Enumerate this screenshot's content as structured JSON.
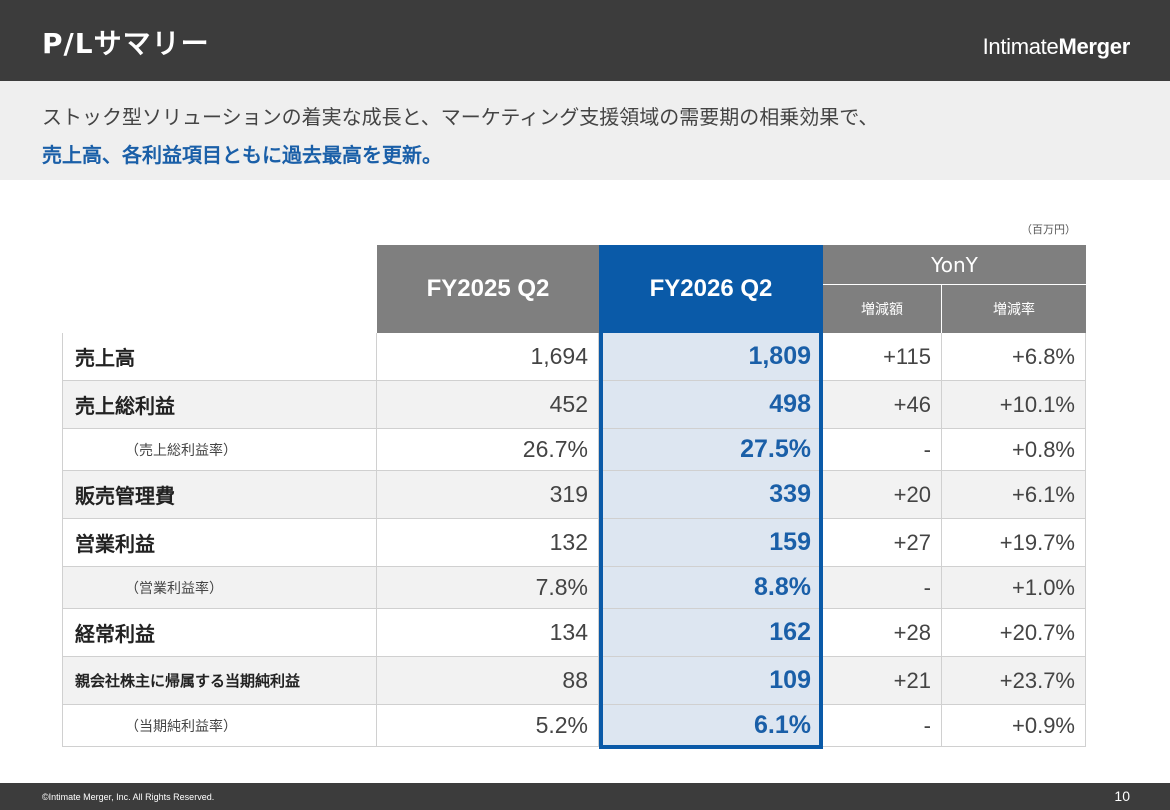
{
  "header": {
    "title": "P/Lサマリー",
    "logo_regular": "Intimate",
    "logo_bold": "Merger"
  },
  "subtitle": {
    "line1": "ストック型ソリューションの着実な成長と、マーケティング支援領域の需要期の相乗効果で、",
    "line2": "売上高、各利益項目ともに過去最高を更新。"
  },
  "unit_note": "（百万円）",
  "table": {
    "col_fy25": "FY2025 Q2",
    "col_fy26": "FY2026 Q2",
    "col_yony": "YonY",
    "col_diff": "増減額",
    "col_rate": "増減率",
    "rows": [
      {
        "label": "売上高",
        "fy25": "1,694",
        "fy26": "1,809",
        "diff": "+115",
        "rate": "+6.8%"
      },
      {
        "label": "売上総利益",
        "fy25": "452",
        "fy26": "498",
        "diff": "+46",
        "rate": "+10.1%"
      },
      {
        "label": "（売上総利益率）",
        "fy25": "26.7%",
        "fy26": "27.5%",
        "diff": "-",
        "rate": "+0.8%"
      },
      {
        "label": "販売管理費",
        "fy25": "319",
        "fy26": "339",
        "diff": "+20",
        "rate": "+6.1%"
      },
      {
        "label": "営業利益",
        "fy25": "132",
        "fy26": "159",
        "diff": "+27",
        "rate": "+19.7%"
      },
      {
        "label": "（営業利益率）",
        "fy25": "7.8%",
        "fy26": "8.8%",
        "diff": "-",
        "rate": "+1.0%"
      },
      {
        "label": "経常利益",
        "fy25": "134",
        "fy26": "162",
        "diff": "+28",
        "rate": "+20.7%"
      },
      {
        "label": "親会社株主に帰属する当期純利益",
        "fy25": "88",
        "fy26": "109",
        "diff": "+21",
        "rate": "+23.7%"
      },
      {
        "label": "（当期純利益率）",
        "fy25": "5.2%",
        "fy26": "6.1%",
        "diff": "-",
        "rate": "+0.9%"
      }
    ]
  },
  "footer": {
    "copyright": "©Intimate Merger, Inc. All Rights Reserved.",
    "page": "10"
  },
  "colors": {
    "accent": "#0a5aa8",
    "highlight_fill": "#dde6f1",
    "header_gray": "#7f7f7f",
    "bar_dark": "#3c3c3c"
  }
}
